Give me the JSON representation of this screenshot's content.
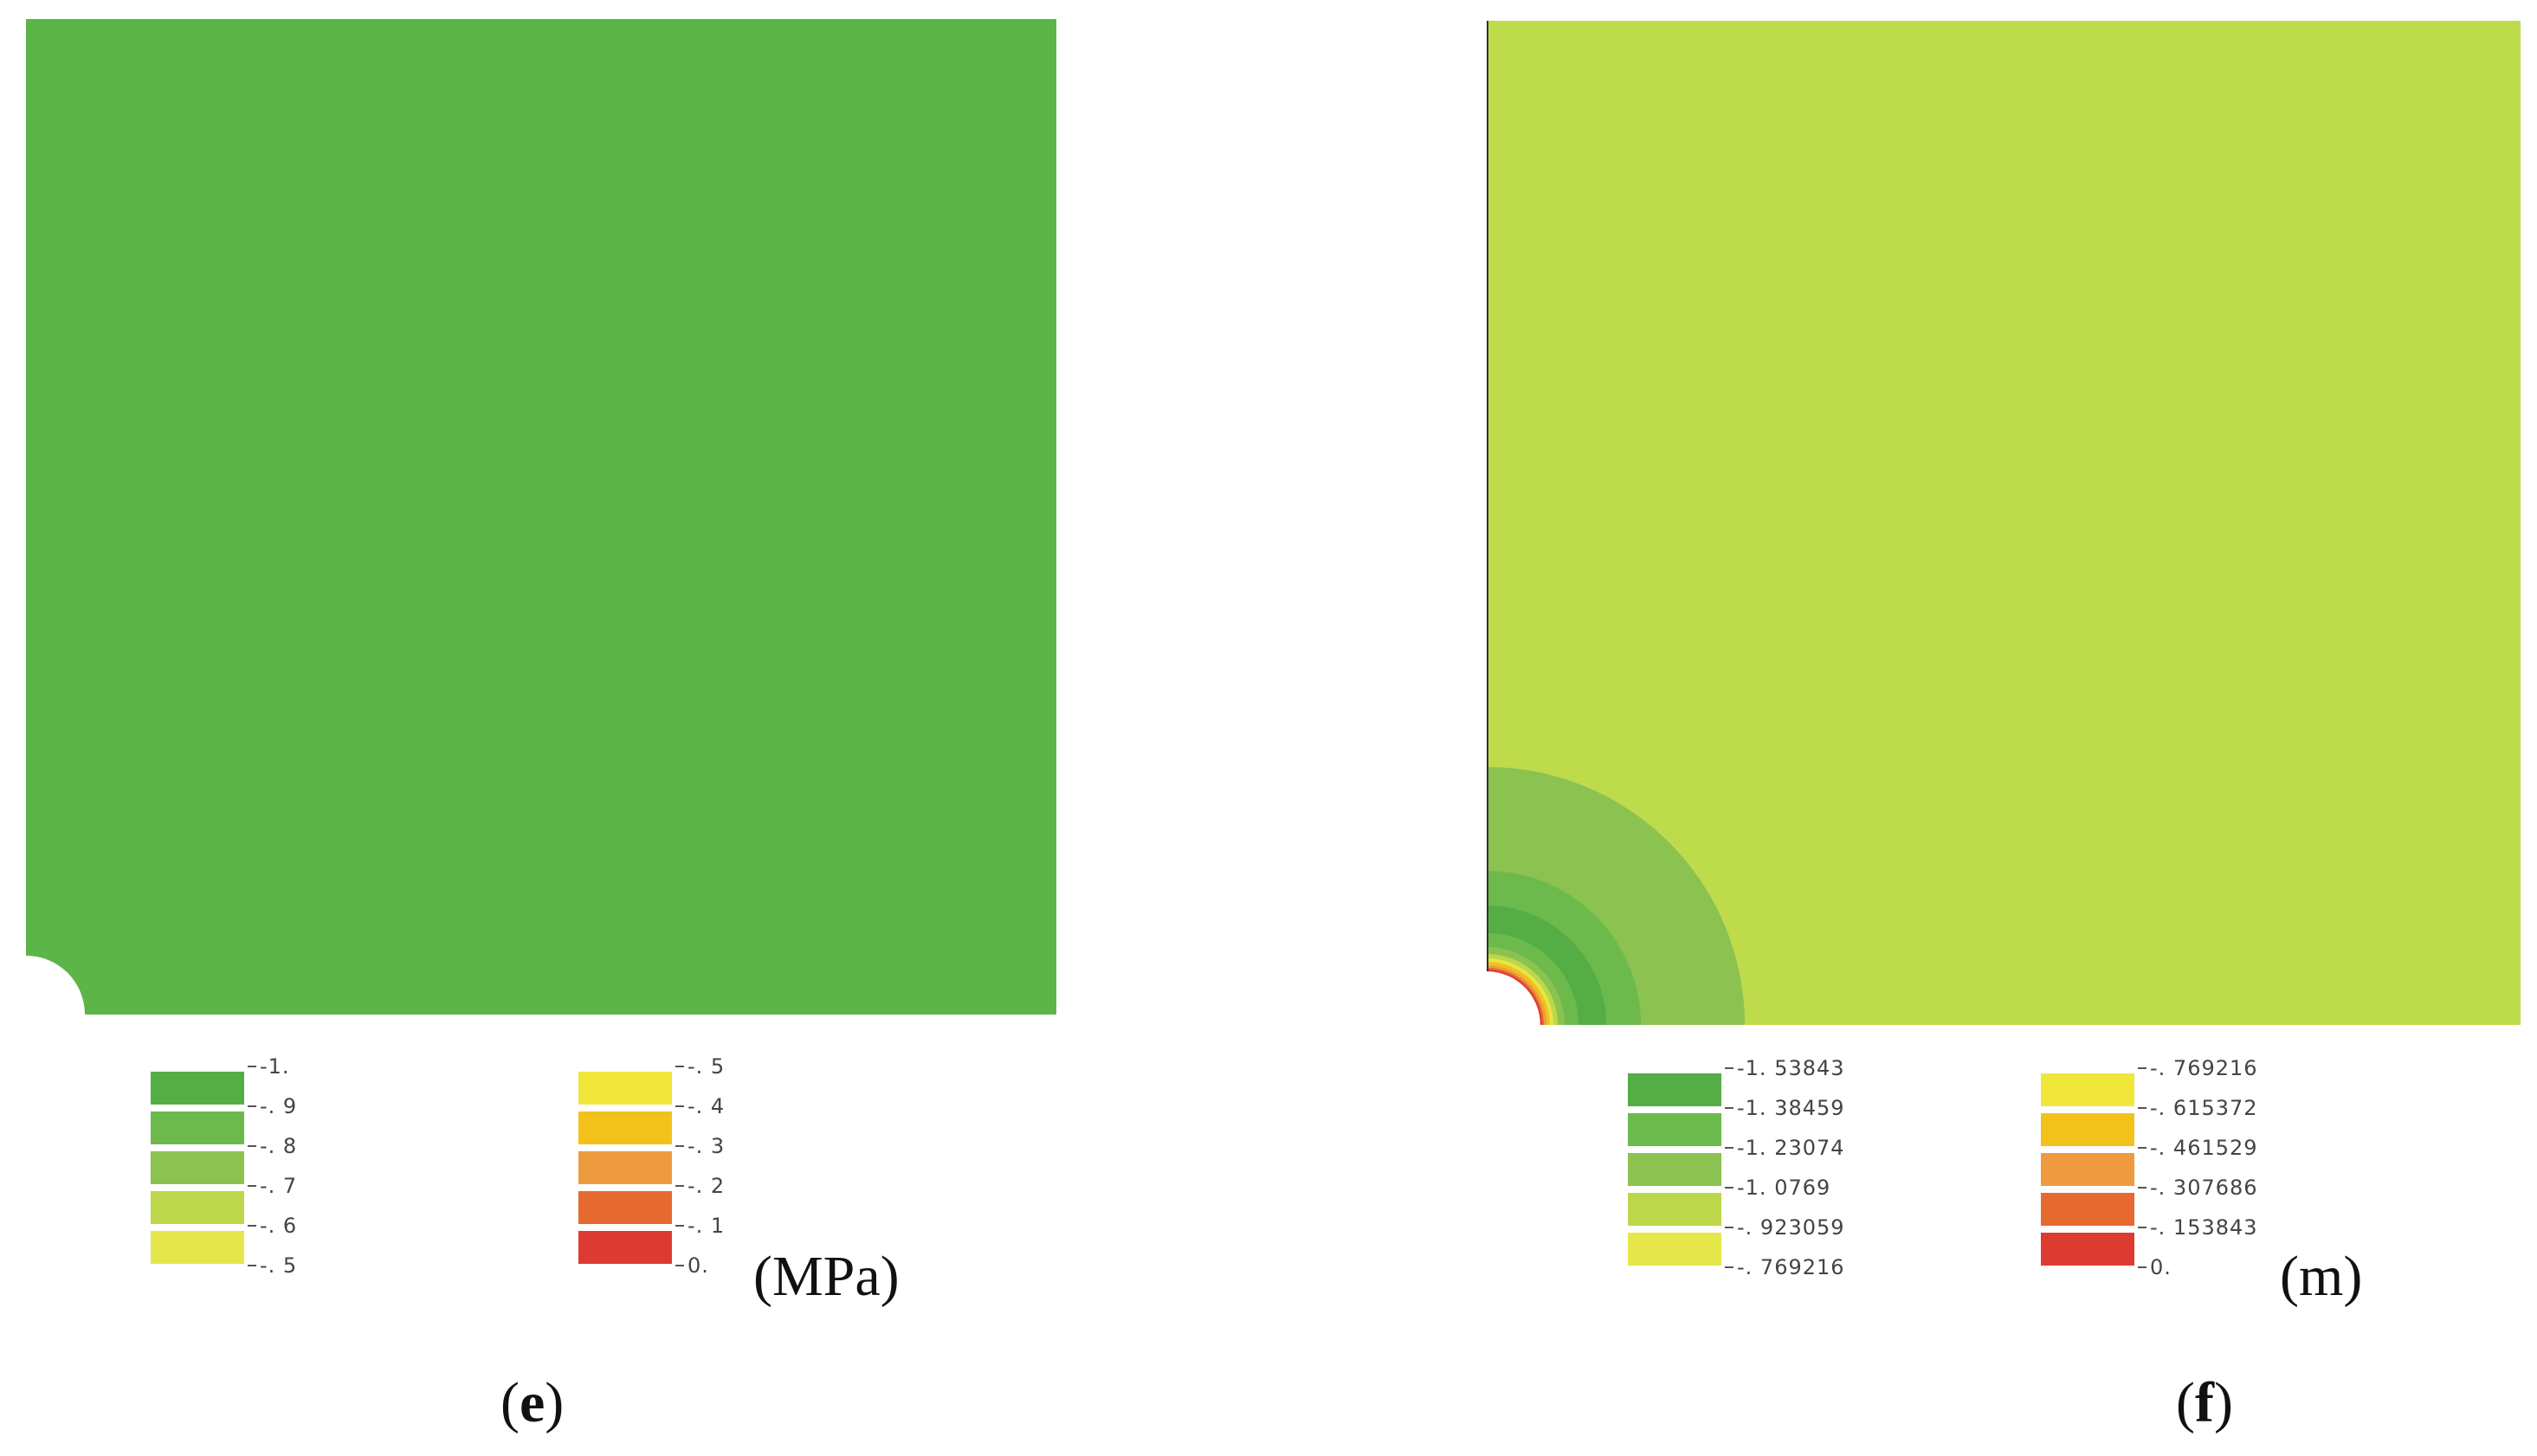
{
  "panels": [
    {
      "id": "e",
      "caption": {
        "open": "(",
        "letter": "e",
        "close": ")"
      },
      "unit": "(MPa)",
      "field_color": "#5cb548",
      "legend": {
        "left": {
          "labels": [
            "-1.",
            "-. 9",
            "-. 8",
            "-. 7",
            "-. 6",
            "-. 5"
          ],
          "colors": [
            "#55ad45",
            "#6cba4c",
            "#8cc24f",
            "#bcd84a",
            "#e4e64a"
          ]
        },
        "right": {
          "labels": [
            "-. 5",
            "-. 4",
            "-. 3",
            "-. 2",
            "-. 1",
            "0."
          ],
          "colors": [
            "#f1e63a",
            "#f2c21a",
            "#ee9b40",
            "#e6692f",
            "#dd3b32"
          ]
        }
      }
    },
    {
      "id": "f",
      "caption": {
        "open": "(",
        "letter": "f",
        "close": ")"
      },
      "unit": "(m)",
      "field_color": "#bedb4c",
      "legend": {
        "left": {
          "labels": [
            "-1. 53843",
            "-1. 38459",
            "-1. 23074",
            "-1. 0769",
            "-. 923059",
            "-. 769216"
          ],
          "colors": [
            "#55ad45",
            "#6cba4c",
            "#8cc24f",
            "#bcd84a",
            "#e4e64a"
          ]
        },
        "right": {
          "labels": [
            "-. 769216",
            "-. 615372",
            "-. 461529",
            "-. 307686",
            "-. 153843",
            "0."
          ],
          "colors": [
            "#f1e63a",
            "#f2c21a",
            "#ee9b40",
            "#e6692f",
            "#dd3b32"
          ]
        }
      }
    }
  ]
}
